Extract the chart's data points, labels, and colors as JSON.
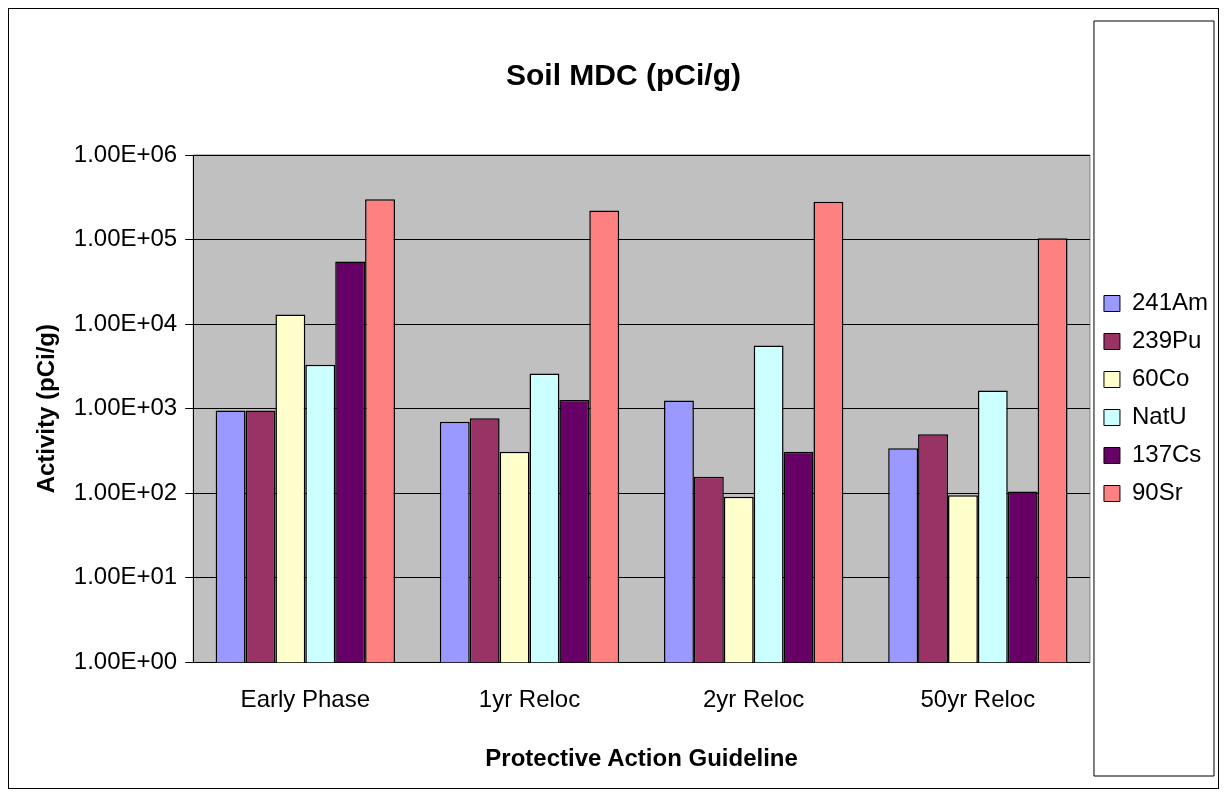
{
  "chart_data": {
    "type": "bar",
    "title": "Soil MDC (pCi/g)",
    "xlabel": "Protective Action Guideline",
    "ylabel": "Activity (pCi/g)",
    "categories": [
      "Early Phase",
      "1yr Reloc",
      "2yr Reloc",
      "50yr Reloc"
    ],
    "series": [
      {
        "name": "241Am",
        "color": "#9999ff",
        "values": [
          950,
          700,
          1250,
          340
        ]
      },
      {
        "name": "239Pu",
        "color": "#993366",
        "values": [
          950,
          770,
          157,
          500
        ]
      },
      {
        "name": "60Co",
        "color": "#ffffcc",
        "values": [
          13000,
          310,
          91,
          95
        ]
      },
      {
        "name": "NatU",
        "color": "#ccffff",
        "values": [
          3300,
          2600,
          5600,
          1640
        ]
      },
      {
        "name": "137Cs",
        "color": "#660066",
        "values": [
          55000,
          1270,
          310,
          105
        ]
      },
      {
        "name": "90Sr",
        "color": "#ff8080",
        "values": [
          300000,
          220000,
          280000,
          104000
        ]
      }
    ],
    "log": "y",
    "ylim": [
      1,
      1000000
    ],
    "yticks": [
      {
        "value": 1,
        "label": "1.00E+00"
      },
      {
        "value": 10,
        "label": "1.00E+01"
      },
      {
        "value": 100,
        "label": "1.00E+02"
      },
      {
        "value": 1000,
        "label": "1.00E+03"
      },
      {
        "value": 10000,
        "label": "1.00E+04"
      },
      {
        "value": 100000,
        "label": "1.00E+05"
      },
      {
        "value": 1000000,
        "label": "1.00E+06"
      }
    ],
    "grid": "y",
    "legend": "right"
  }
}
